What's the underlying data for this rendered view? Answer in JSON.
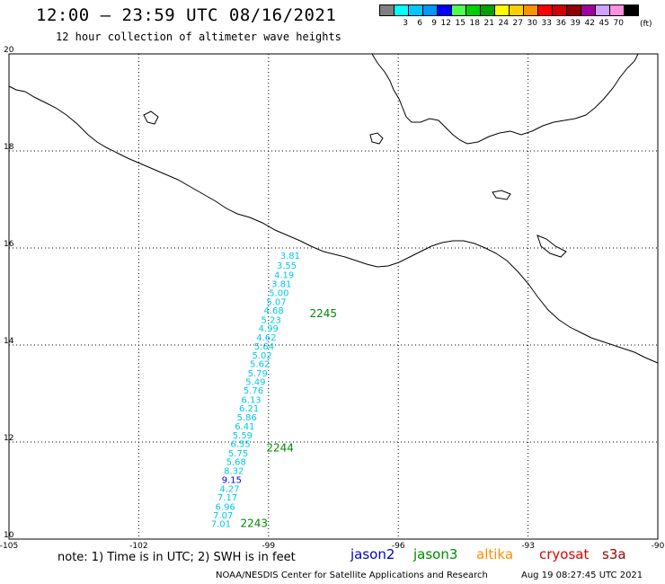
{
  "header": {
    "title": "12:00 – 23:59 UTC 08/16/2021",
    "subtitle": "12 hour collection of altimeter wave heights"
  },
  "legend": {
    "unit": "(ft)",
    "items": [
      {
        "label": "",
        "color": "#808080"
      },
      {
        "label": "3",
        "color": "#00ffff"
      },
      {
        "label": "6",
        "color": "#00c8ff"
      },
      {
        "label": "9",
        "color": "#0096ff"
      },
      {
        "label": "12",
        "color": "#0000ff"
      },
      {
        "label": "15",
        "color": "#50ff50"
      },
      {
        "label": "18",
        "color": "#00d000"
      },
      {
        "label": "21",
        "color": "#00a000"
      },
      {
        "label": "24",
        "color": "#ffff00"
      },
      {
        "label": "27",
        "color": "#ffd000"
      },
      {
        "label": "30",
        "color": "#ff9000"
      },
      {
        "label": "33",
        "color": "#ff0000"
      },
      {
        "label": "36",
        "color": "#d00000"
      },
      {
        "label": "39",
        "color": "#900000"
      },
      {
        "label": "42",
        "color": "#a000a0"
      },
      {
        "label": "45",
        "color": "#d0a0ff"
      },
      {
        "label": "70",
        "color": "#ff90e0"
      },
      {
        "label": "",
        "color": "#000000"
      }
    ]
  },
  "axes": {
    "lon_labels": [
      "-105",
      "-102",
      "-99",
      "-96",
      "-93",
      "-90"
    ],
    "lat_labels": [
      "20",
      "18",
      "16",
      "14",
      "12",
      "10"
    ]
  },
  "track": {
    "satellite": "jason3",
    "color": "#00c8e6",
    "highlight_color": "#0000ff",
    "points": [
      {
        "lat": 15.85,
        "lon": -98.5,
        "swh": "3.81"
      },
      {
        "lat": 15.65,
        "lon": -98.58,
        "swh": "3.55"
      },
      {
        "lat": 15.45,
        "lon": -98.64,
        "swh": "4.19"
      },
      {
        "lat": 15.27,
        "lon": -98.7,
        "swh": "3.81"
      },
      {
        "lat": 15.08,
        "lon": -98.76,
        "swh": "5.00"
      },
      {
        "lat": 14.9,
        "lon": -98.82,
        "swh": "5.07"
      },
      {
        "lat": 14.72,
        "lon": -98.88,
        "swh": "4.68"
      },
      {
        "lat": 14.53,
        "lon": -98.94,
        "swh": "5.23"
      },
      {
        "lat": 14.35,
        "lon": -99.0,
        "swh": "4.99"
      },
      {
        "lat": 14.17,
        "lon": -99.05,
        "swh": "4.62"
      },
      {
        "lat": 13.98,
        "lon": -99.1,
        "swh": "5.64"
      },
      {
        "lat": 13.8,
        "lon": -99.15,
        "swh": "5.02"
      },
      {
        "lat": 13.62,
        "lon": -99.2,
        "swh": "5.62"
      },
      {
        "lat": 13.43,
        "lon": -99.25,
        "swh": "5.79"
      },
      {
        "lat": 13.25,
        "lon": -99.3,
        "swh": "5.49"
      },
      {
        "lat": 13.07,
        "lon": -99.35,
        "swh": "5.76"
      },
      {
        "lat": 12.88,
        "lon": -99.4,
        "swh": "6.13"
      },
      {
        "lat": 12.7,
        "lon": -99.45,
        "swh": "6.21"
      },
      {
        "lat": 12.52,
        "lon": -99.5,
        "swh": "5.86"
      },
      {
        "lat": 12.33,
        "lon": -99.55,
        "swh": "6.41"
      },
      {
        "lat": 12.15,
        "lon": -99.6,
        "swh": "5.59"
      },
      {
        "lat": 11.97,
        "lon": -99.65,
        "swh": "6.55"
      },
      {
        "lat": 11.78,
        "lon": -99.7,
        "swh": "5.75"
      },
      {
        "lat": 11.6,
        "lon": -99.75,
        "swh": "5.68"
      },
      {
        "lat": 11.42,
        "lon": -99.8,
        "swh": "8.32"
      },
      {
        "lat": 11.23,
        "lon": -99.85,
        "swh": "9.15",
        "highlight": true
      },
      {
        "lat": 11.05,
        "lon": -99.9,
        "swh": "4.27"
      },
      {
        "lat": 10.87,
        "lon": -99.95,
        "swh": "7.17"
      },
      {
        "lat": 10.68,
        "lon": -100.0,
        "swh": "6.96"
      },
      {
        "lat": 10.5,
        "lon": -100.05,
        "swh": "7.07"
      },
      {
        "lat": 10.32,
        "lon": -100.1,
        "swh": "7.01"
      }
    ],
    "times": [
      {
        "label": "2245",
        "lat": 14.65,
        "lon": -98.05
      },
      {
        "label": "2244",
        "lat": 11.88,
        "lon": -99.05
      },
      {
        "label": "2243",
        "lat": 10.32,
        "lon": -99.65
      }
    ]
  },
  "footer": {
    "note": "note: 1) Time is in UTC; 2) SWH is in feet",
    "satellites": [
      {
        "name": "jason2",
        "color": "#0000cc"
      },
      {
        "name": "jason3",
        "color": "#008800"
      },
      {
        "name": "altika",
        "color": "#ff8c00"
      },
      {
        "name": "cryosat",
        "color": "#dd0000"
      },
      {
        "name": "s3a",
        "color": "#990000"
      }
    ],
    "credit": "NOAA/NESDIS Center for Satellite Applications and Research",
    "generated": "Aug 19 08:27:45 UTC 2021"
  }
}
